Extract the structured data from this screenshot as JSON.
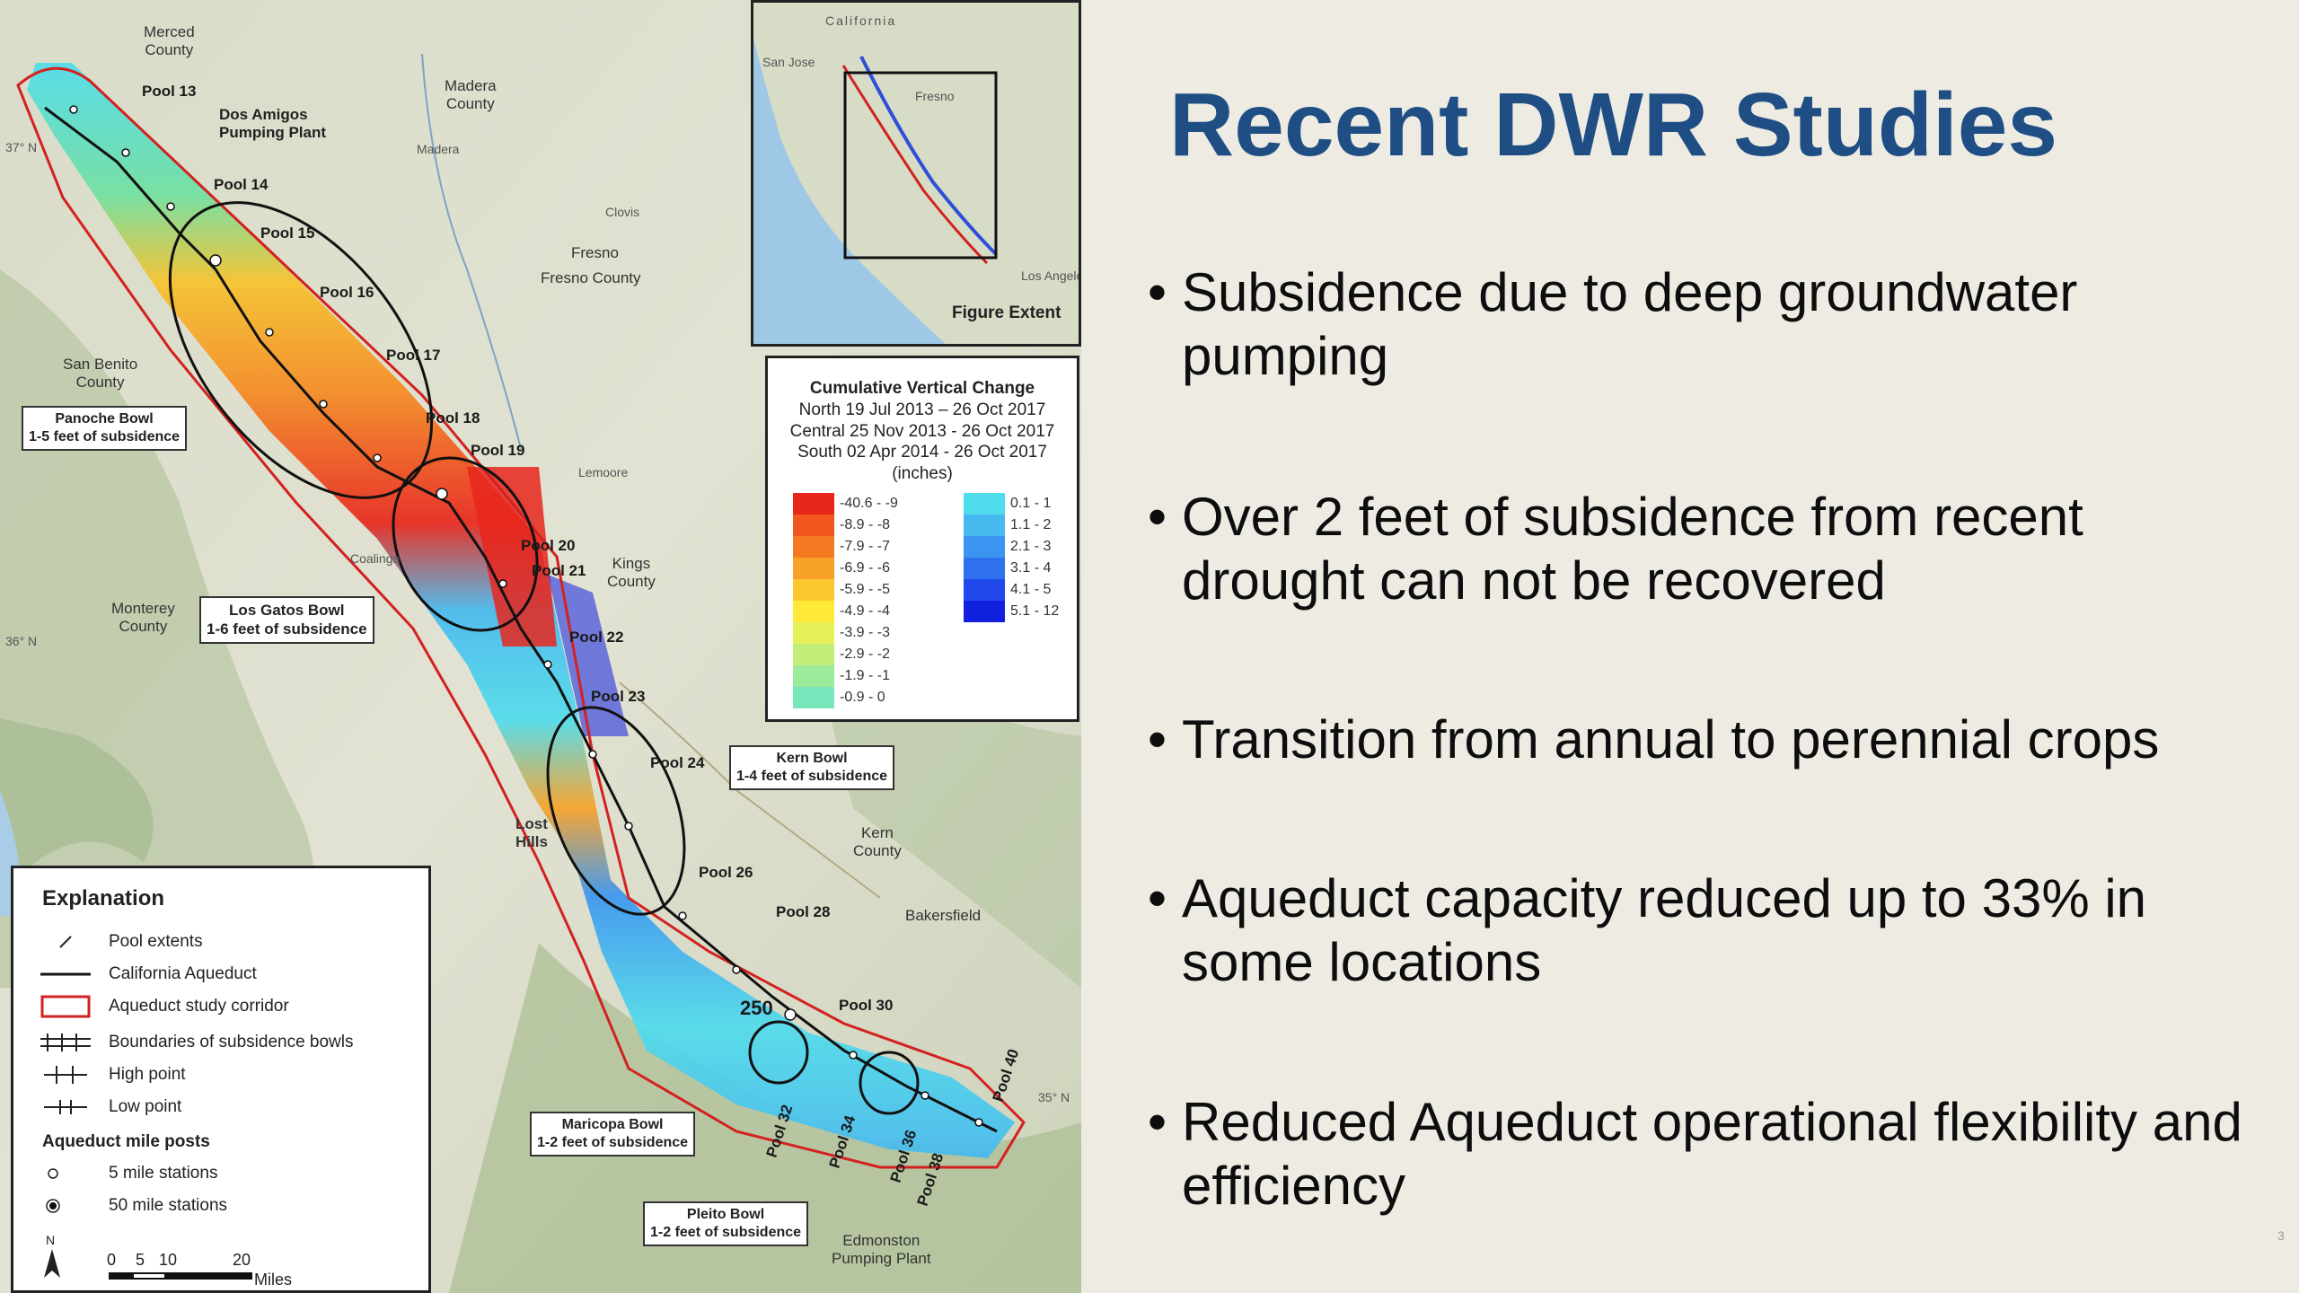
{
  "slide": {
    "title": "Recent DWR Studies",
    "bullets": [
      "Subsidence due to deep groundwater pumping",
      "Over 2 feet of subsidence from recent drought can not be recovered",
      "Transition from annual to perennial crops",
      "Aqueduct capacity reduced up to 33% in some locations",
      "Reduced Aqueduct operational flexibility and efficiency"
    ],
    "page_number": "3",
    "title_color": "#1f4e85"
  },
  "map": {
    "pools": [
      "Pool 13",
      "Pool 14",
      "Pool 15",
      "Pool 16",
      "Pool 17",
      "Pool 18",
      "Pool 19",
      "Pool 20",
      "Pool 21",
      "Pool 22",
      "Pool 23",
      "Pool 24",
      "Pool 26",
      "Pool 28",
      "Pool 30",
      "Pool 32",
      "Pool 34",
      "Pool 36",
      "Pool 38",
      "Pool 40"
    ],
    "places": {
      "merced": "Merced\nCounty",
      "madera_county": "Madera\nCounty",
      "madera": "Madera",
      "dos_amigos": "Dos Amigos\nPumping Plant",
      "fresno": "Fresno",
      "fresno_county": "Fresno County",
      "clovis": "Clovis",
      "san_benito": "San Benito\nCounty",
      "monterey": "Monterey\nCounty",
      "coalinga": "Coalinga",
      "lemoore": "Lemoore",
      "kings": "Kings\nCounty",
      "lost_hills": "Lost\nHills",
      "kern": "Kern\nCounty",
      "bakersfield": "Bakersfield",
      "edmonston": "Edmonston\nPumping Plant",
      "mile_250": "250",
      "lat_37": "37° N",
      "lat_36": "36° N",
      "lat_35": "35° N"
    },
    "bowls": {
      "panoche": "Panoche Bowl\n1-5 feet of subsidence",
      "los_gatos": "Los Gatos Bowl\n1-6 feet of subsidence",
      "kern": "Kern Bowl\n1-4 feet of subsidence",
      "maricopa": "Maricopa Bowl\n1-2 feet of subsidence",
      "pleito": "Pleito Bowl\n1-2 feet of subsidence"
    },
    "inset": {
      "caption": "Figure Extent",
      "labels": [
        "California",
        "San Jose",
        "Fresno",
        "Los Angeles"
      ]
    },
    "change_legend": {
      "title": "Cumulative Vertical Change",
      "lines": [
        "North 19 Jul 2013 – 26 Oct 2017",
        "Central 25 Nov 2013 - 26 Oct 2017",
        "South 02 Apr 2014 - 26 Oct 2017",
        "(inches)"
      ],
      "negative": [
        {
          "label": "-40.6 - -9",
          "color": "#e8261c"
        },
        {
          "label": "-8.9 - -8",
          "color": "#f2561e"
        },
        {
          "label": "-7.9 - -7",
          "color": "#f47a22"
        },
        {
          "label": "-6.9 - -6",
          "color": "#f7a128"
        },
        {
          "label": "-5.9 - -5",
          "color": "#fbc72e"
        },
        {
          "label": "-4.9 - -4",
          "color": "#fde936"
        },
        {
          "label": "-3.9 - -3",
          "color": "#e6f05a"
        },
        {
          "label": "-2.9 - -2",
          "color": "#c2ee7a"
        },
        {
          "label": "-1.9 - -1",
          "color": "#9ceb9a"
        },
        {
          "label": "-0.9 - 0",
          "color": "#78e7bb"
        }
      ],
      "positive": [
        {
          "label": "0.1 - 1",
          "color": "#4fdcec"
        },
        {
          "label": "1.1 - 2",
          "color": "#46b9ef"
        },
        {
          "label": "2.1 - 3",
          "color": "#3a95f0"
        },
        {
          "label": "3.1 - 4",
          "color": "#2f70ee"
        },
        {
          "label": "4.1 - 5",
          "color": "#2048ea"
        },
        {
          "label": "5.1 - 12",
          "color": "#1220e0"
        }
      ]
    },
    "explanation": {
      "title": "Explanation",
      "items": [
        "Pool extents",
        "California Aqueduct",
        "Aqueduct study corridor",
        "Boundaries of subsidence bowls",
        "High point",
        "Low point"
      ],
      "mileposts_title": "Aqueduct mile posts",
      "mileposts": [
        "5 mile stations",
        "50 mile stations"
      ],
      "scale": {
        "ticks": [
          "0",
          "5",
          "10",
          "20"
        ],
        "unit": "Miles",
        "north": "N"
      }
    }
  }
}
